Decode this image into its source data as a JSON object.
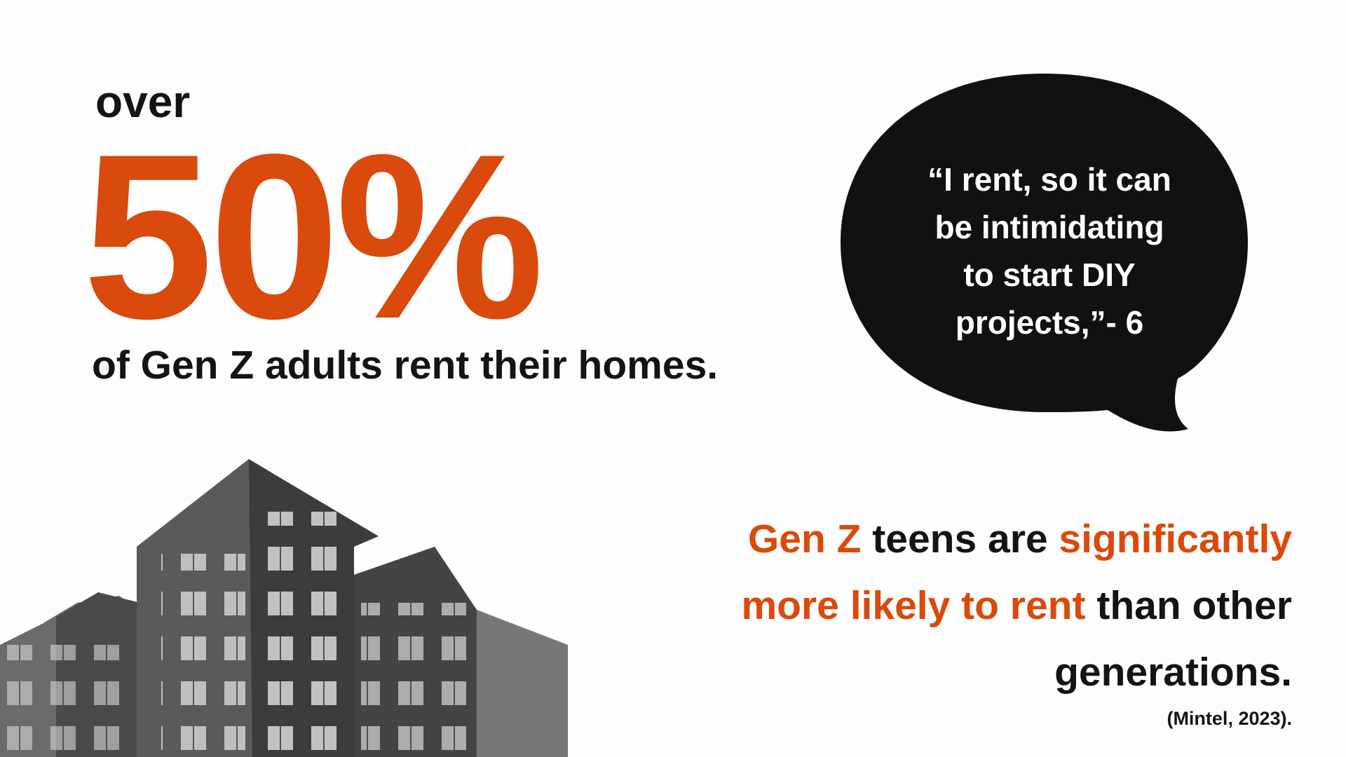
{
  "stat": {
    "lead": "over",
    "figure": "50%",
    "caption": "of Gen Z adults rent their homes."
  },
  "quote": {
    "lines": [
      "“I rent, so it can",
      "be intimidating",
      "to start DIY",
      "projects,”- 6"
    ]
  },
  "finding": {
    "lines": [
      [
        {
          "text": "Gen Z",
          "emphasis": true
        },
        {
          "text": " teens are ",
          "emphasis": false
        },
        {
          "text": "significantly",
          "emphasis": true
        }
      ],
      [
        {
          "text": "more likely to rent",
          "emphasis": true
        },
        {
          "text": " than other",
          "emphasis": false
        }
      ],
      [
        {
          "text": "generations.",
          "emphasis": false
        }
      ]
    ],
    "citation": "(Mintel, 2023)."
  }
}
